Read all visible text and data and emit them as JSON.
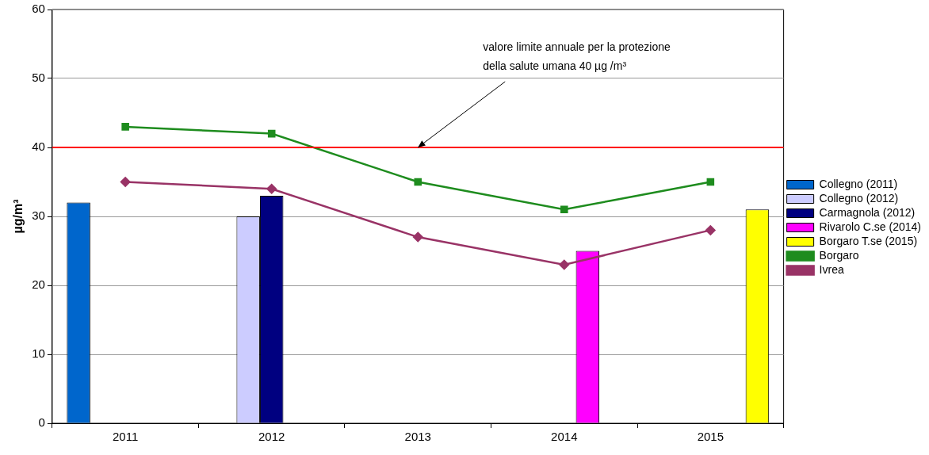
{
  "chart_data": {
    "type": "bar",
    "ylabel": "µg/m³",
    "categories": [
      "2011",
      "2012",
      "2013",
      "2014",
      "2015"
    ],
    "series": [
      {
        "name": "Collegno (2011)",
        "color": "#0066cc",
        "values": [
          32,
          null,
          null,
          null,
          null
        ]
      },
      {
        "name": "Collegno (2012)",
        "color": "#ccccff",
        "values": [
          null,
          30,
          null,
          null,
          null
        ]
      },
      {
        "name": "Carmagnola (2012)",
        "color": "#000080",
        "values": [
          null,
          33,
          null,
          null,
          null
        ]
      },
      {
        "name": "Rivarolo C.se (2014)",
        "color": "#ff00ff",
        "values": [
          null,
          null,
          null,
          25,
          null
        ]
      },
      {
        "name": "Borgaro T.se (2015)",
        "color": "#ffff00",
        "values": [
          null,
          null,
          null,
          null,
          31
        ]
      },
      {
        "name": "Borgaro",
        "type": "line",
        "color": "#1e8c1e",
        "marker": "square",
        "values": [
          43,
          42,
          35,
          31,
          35
        ]
      },
      {
        "name": "Ivrea",
        "type": "line",
        "color": "#993366",
        "marker": "diamond",
        "values": [
          35,
          34,
          27,
          23,
          28
        ]
      }
    ],
    "ylim": [
      0,
      60
    ],
    "yticks": [
      0,
      10,
      20,
      30,
      40,
      50,
      60
    ],
    "grid": "y",
    "legend": "right",
    "ref_lines": [
      {
        "axis": "y",
        "value": 40,
        "color": "#ff0000"
      }
    ],
    "annotations": [
      {
        "text": "valore limite annuale per la protezione della salute umana 40 µg /m³",
        "x": "2013",
        "y": 40
      }
    ]
  }
}
